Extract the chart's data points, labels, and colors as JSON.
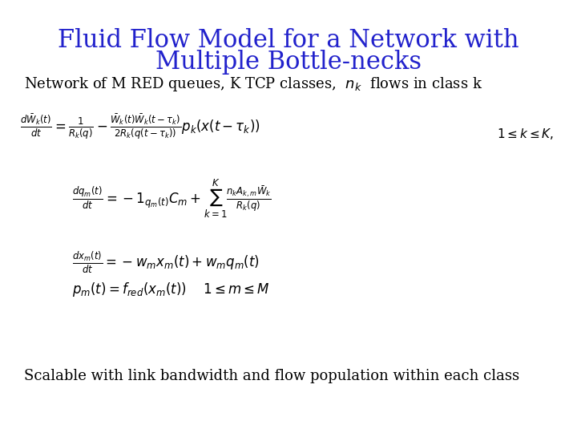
{
  "title_line1": "Fluid Flow Model for a Network with",
  "title_line2": "Multiple Bottle-necks",
  "title_color": "#2222cc",
  "title_fontsize": 22,
  "bg_color": "#ffffff",
  "subtitle_prefix": "Network of M RED queues, K TCP classes,  ",
  "subtitle_nk": "$n_k$",
  "subtitle_suffix": "  flows in class k",
  "subtitle_fontsize": 13,
  "eq1": "$\\frac{d\\bar{W}_k(t)}{dt} = \\frac{1}{R_k(q)} - \\frac{\\bar{W}_k(t)\\bar{W}_k(t-\\tau_k)}{2R_k(q(t-\\tau_k))}p_k(x(t-\\tau_k))$",
  "eq1_cond": "$1 \\leq k \\leq K,$",
  "eq2": "$\\frac{dq_m(t)}{dt} = -1_{q_m(t)}C_m + \\sum_{k=1}^{K} \\frac{n_k A_{k,m} \\bar{W}_k}{R_k(q)}$",
  "eq3": "$\\frac{dx_m(t)}{dt} = -w_m x_m(t) + w_m q_m(t)$",
  "eq4": "$p_m(t) = f_{red}(x_m(t))$",
  "eq4_cond": "$1 \\leq m \\leq M$",
  "footer": "Scalable with link bandwidth and flow population within each class",
  "footer_fontsize": 13,
  "eq_fontsize": 12,
  "eq_color": "#000000",
  "text_color": "#000000"
}
